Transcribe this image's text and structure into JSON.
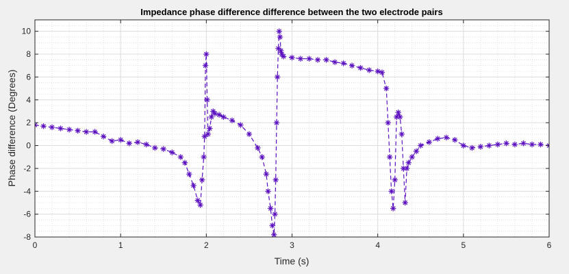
{
  "chart_data": {
    "type": "line",
    "title": "Impedance phase difference difference between the two electrode pairs",
    "xlabel": "Time (s)",
    "ylabel": "Phase difference (Degrees)",
    "xlim": [
      0,
      6
    ],
    "ylim": [
      -8,
      11
    ],
    "xticks": [
      0,
      1,
      2,
      3,
      4,
      5,
      6
    ],
    "yticks": [
      -8,
      -6,
      -4,
      -2,
      0,
      2,
      4,
      6,
      8,
      10
    ],
    "grid": "major and minor",
    "marker": "asterisk",
    "line_style": "dashed",
    "series": [
      {
        "color": "#5a0fbf",
        "x": [
          0.0,
          0.1,
          0.2,
          0.3,
          0.4,
          0.5,
          0.6,
          0.7,
          0.8,
          0.9,
          1.0,
          1.1,
          1.2,
          1.3,
          1.4,
          1.5,
          1.6,
          1.7,
          1.75,
          1.8,
          1.85,
          1.9,
          1.93,
          1.95,
          1.97,
          1.98,
          1.99,
          2.0,
          2.01,
          2.02,
          2.04,
          2.06,
          2.08,
          2.1,
          2.15,
          2.2,
          2.3,
          2.4,
          2.5,
          2.6,
          2.65,
          2.7,
          2.72,
          2.75,
          2.77,
          2.79,
          2.8,
          2.81,
          2.82,
          2.83,
          2.84,
          2.85,
          2.86,
          2.87,
          2.88,
          2.9,
          3.0,
          3.1,
          3.2,
          3.3,
          3.4,
          3.5,
          3.6,
          3.7,
          3.8,
          3.9,
          4.0,
          4.05,
          4.1,
          4.12,
          4.14,
          4.16,
          4.18,
          4.2,
          4.22,
          4.24,
          4.26,
          4.28,
          4.3,
          4.32,
          4.34,
          4.36,
          4.4,
          4.45,
          4.5,
          4.6,
          4.7,
          4.8,
          4.9,
          5.0,
          5.1,
          5.2,
          5.3,
          5.4,
          5.5,
          5.6,
          5.7,
          5.8,
          5.9,
          6.0
        ],
        "y": [
          1.8,
          1.7,
          1.6,
          1.5,
          1.4,
          1.3,
          1.2,
          1.2,
          0.8,
          0.4,
          0.5,
          0.2,
          0.3,
          0.1,
          -0.2,
          -0.3,
          -0.6,
          -1.0,
          -1.5,
          -2.5,
          -3.5,
          -4.8,
          -5.2,
          -3.0,
          -1.0,
          0.8,
          7.0,
          8.0,
          4.0,
          1.0,
          1.5,
          2.5,
          3.0,
          2.8,
          2.7,
          2.5,
          2.2,
          1.8,
          1.0,
          -0.2,
          -1.0,
          -2.5,
          -4.0,
          -5.5,
          -7.0,
          -7.8,
          -6.0,
          -3.0,
          2.0,
          6.0,
          8.5,
          10.0,
          9.5,
          8.3,
          8.0,
          7.8,
          7.7,
          7.6,
          7.6,
          7.5,
          7.5,
          7.3,
          7.2,
          7.0,
          6.8,
          6.6,
          6.5,
          6.4,
          5.0,
          2.0,
          -1.0,
          -4.0,
          -5.5,
          -3.0,
          2.5,
          2.9,
          2.5,
          1.0,
          -2.0,
          -5.0,
          -2.0,
          -1.5,
          -1.0,
          -0.5,
          0.0,
          0.3,
          0.6,
          0.7,
          0.5,
          0.0,
          -0.2,
          -0.1,
          0.0,
          0.1,
          0.2,
          0.1,
          0.2,
          0.1,
          0.1,
          0.0
        ]
      }
    ]
  }
}
